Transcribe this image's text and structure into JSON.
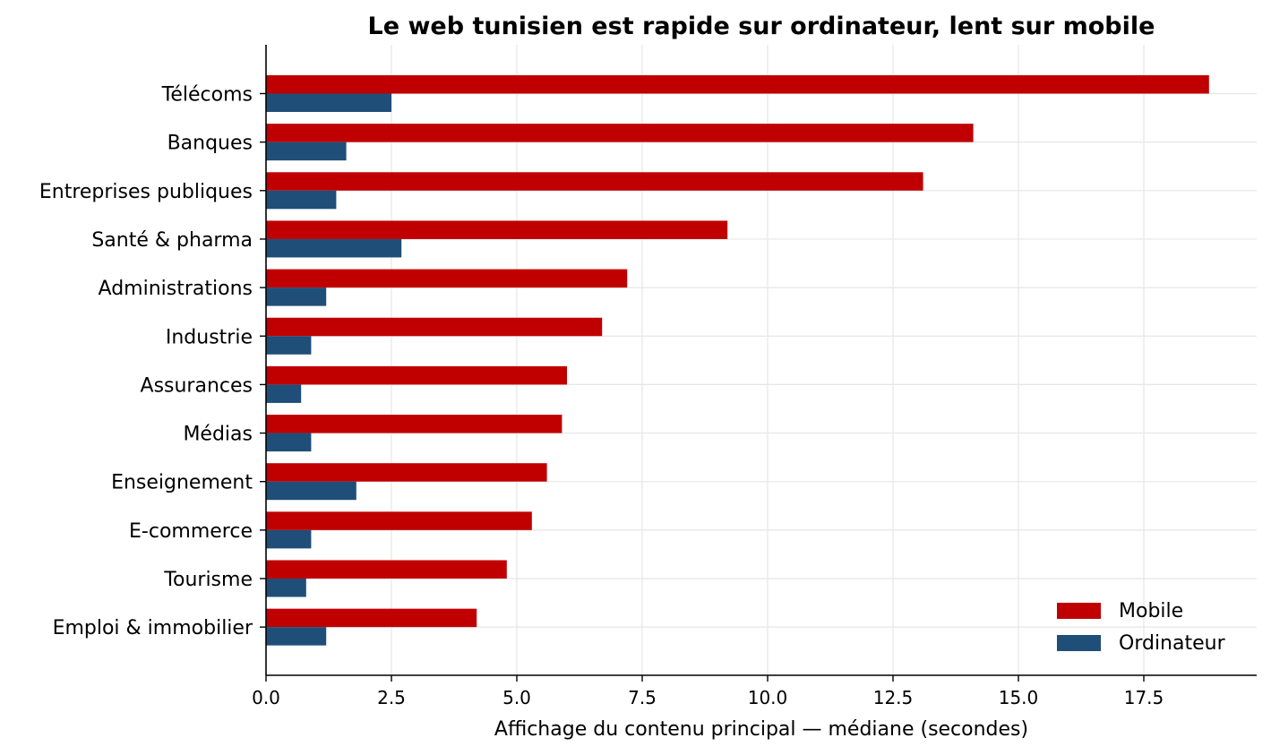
{
  "chart_data": {
    "type": "bar",
    "orientation": "horizontal",
    "title": "Le web tunisien est rapide sur ordinateur, lent sur mobile",
    "xlabel": "Affichage du contenu principal — médiane (secondes)",
    "ylabel": "",
    "xlim": [
      0,
      19.75
    ],
    "xticks": [
      0,
      2.5,
      5,
      7.5,
      10,
      12.5,
      15,
      17.5
    ],
    "xtick_labels": [
      "0.0",
      "2.5",
      "5.0",
      "7.5",
      "10.0",
      "12.5",
      "15.0",
      "17.5"
    ],
    "grid": true,
    "legend_position": "bottom-right",
    "categories": [
      "Télécoms",
      "Banques",
      "Entreprises publiques",
      "Santé & pharma",
      "Administrations",
      "Industrie",
      "Assurances",
      "Médias",
      "Enseignement",
      "E-commerce",
      "Tourisme",
      "Emploi & immobilier"
    ],
    "series": [
      {
        "name": "Mobile",
        "color": "#c00000",
        "values": [
          18.8,
          14.1,
          13.1,
          9.2,
          7.2,
          6.7,
          6.0,
          5.9,
          5.6,
          5.3,
          4.8,
          4.2
        ]
      },
      {
        "name": "Ordinateur",
        "color": "#1f4e79",
        "values": [
          2.5,
          1.6,
          1.4,
          2.7,
          1.2,
          0.9,
          0.7,
          0.9,
          1.8,
          0.9,
          0.8,
          1.2
        ]
      }
    ]
  }
}
